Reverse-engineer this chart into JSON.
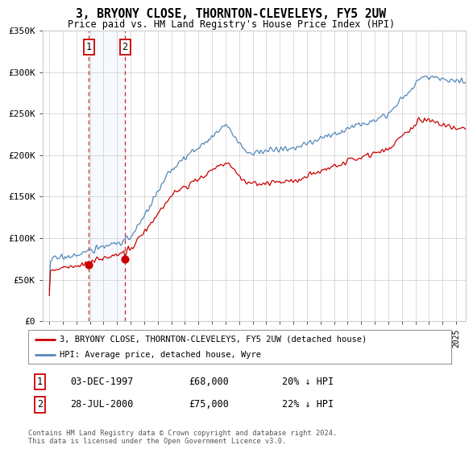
{
  "title": "3, BRYONY CLOSE, THORNTON-CLEVELEYS, FY5 2UW",
  "subtitle": "Price paid vs. HM Land Registry's House Price Index (HPI)",
  "legend_line1": "3, BRYONY CLOSE, THORNTON-CLEVELEYS, FY5 2UW (detached house)",
  "legend_line2": "HPI: Average price, detached house, Wyre",
  "purchase1_date": "03-DEC-1997",
  "purchase1_price": 68000,
  "purchase1_label": "20% ↓ HPI",
  "purchase2_date": "28-JUL-2000",
  "purchase2_price": 75000,
  "purchase2_label": "22% ↓ HPI",
  "footer": "Contains HM Land Registry data © Crown copyright and database right 2024.\nThis data is licensed under the Open Government Licence v3.0.",
  "hpi_color": "#5588bb",
  "price_color": "#cc0000",
  "ylim": [
    0,
    350000
  ],
  "yticks": [
    0,
    50000,
    100000,
    150000,
    200000,
    250000,
    300000,
    350000
  ],
  "ytick_labels": [
    "£0",
    "£50K",
    "£100K",
    "£150K",
    "£200K",
    "£250K",
    "£300K",
    "£350K"
  ],
  "background_color": "#ffffff",
  "grid_color": "#cccccc"
}
